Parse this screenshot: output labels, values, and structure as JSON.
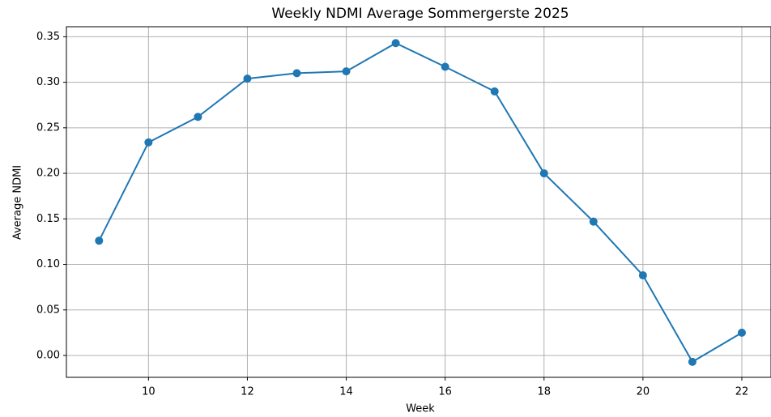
{
  "chart_data": {
    "type": "line",
    "title": "Weekly NDMI Average Sommergerste 2025",
    "x_label": "Week",
    "y_label": "Average NDMI",
    "x": [
      9,
      10,
      11,
      12,
      13,
      14,
      15,
      16,
      17,
      18,
      19,
      20,
      21,
      22
    ],
    "series": [
      {
        "name": "Average NDMI",
        "color": "#1f77b4",
        "values": [
          0.126,
          0.234,
          0.262,
          0.304,
          0.31,
          0.312,
          0.343,
          0.317,
          0.29,
          0.2,
          0.147,
          0.088,
          -0.007,
          0.025
        ]
      }
    ],
    "xlim": [
      8.34,
      22.59
    ],
    "ylim": [
      -0.024,
      0.361
    ],
    "xticks": [
      10,
      12,
      14,
      16,
      18,
      20,
      22
    ],
    "yticks": [
      {
        "value": 0,
        "label": "0.00"
      },
      {
        "value": 0.05,
        "label": "0.05"
      },
      {
        "value": 0.1,
        "label": "0.10"
      },
      {
        "value": 0.15,
        "label": "0.15"
      },
      {
        "value": 0.2,
        "label": "0.20"
      },
      {
        "value": 0.25,
        "label": "0.25"
      },
      {
        "value": 0.3,
        "label": "0.30"
      },
      {
        "value": 0.35,
        "label": "0.35"
      }
    ],
    "grid": true
  }
}
